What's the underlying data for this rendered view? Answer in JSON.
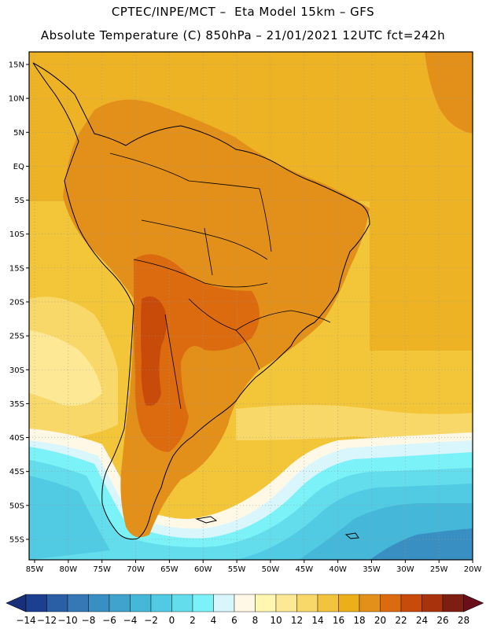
{
  "header": {
    "line1": "CPTEC/INPE/MCT –  Eta Model 15km – GFS",
    "line2": "Absolute Temperature (C) 850hPa – 21/01/2021 12UTC fct=242h"
  },
  "axes": {
    "lat_labels": [
      "15N",
      "10N",
      "5N",
      "EQ",
      "5S",
      "10S",
      "15S",
      "20S",
      "25S",
      "30S",
      "35S",
      "40S",
      "45S",
      "50S",
      "55S"
    ],
    "lon_labels": [
      "85W",
      "80W",
      "75W",
      "70W",
      "65W",
      "60W",
      "55W",
      "50W",
      "45W",
      "40W",
      "35W",
      "30W",
      "25W",
      "20W"
    ]
  },
  "colorbar": {
    "labels": [
      "-14",
      "-12",
      "-10",
      "-8",
      "-6",
      "-4",
      "-2",
      "0",
      "2",
      "4",
      "6",
      "8",
      "10",
      "12",
      "14",
      "16",
      "18",
      "20",
      "22",
      "24",
      "26",
      "28"
    ],
    "colors": [
      "#1d3f8f",
      "#2a5ea5",
      "#3479b5",
      "#3a8fc2",
      "#3fa3cd",
      "#45b7d8",
      "#51cbe3",
      "#63dcec",
      "#7af2f7",
      "#d8f6fb",
      "#fff8e6",
      "#fff7b0",
      "#fde895",
      "#f9d86a",
      "#f2c43d",
      "#ecae19",
      "#e3901a",
      "#dc6a0f",
      "#c84b0a",
      "#a8320c",
      "#7d1e10"
    ],
    "under_color": "#1a2f7a",
    "over_color": "#6a0e1c"
  },
  "map_colors": {
    "ocean_warm": "#edb325",
    "ocean_mid": "#f3c63a",
    "ocean_light": "#f9d86a",
    "ocean_pale": "#fde895",
    "cream": "#fff8e6",
    "pale_blue": "#d8f6fb",
    "cyan": "#7af2f7",
    "light_cyan": "#63dcec",
    "sky": "#51cbe3",
    "blue_mid": "#45b7d8",
    "blue_dark": "#3a8fc2",
    "land_warm": "#e3901a",
    "land_hot": "#dc6a0f",
    "land_very_hot": "#c84b0a",
    "grid": "#9a9a9a",
    "coast": "#000000"
  }
}
